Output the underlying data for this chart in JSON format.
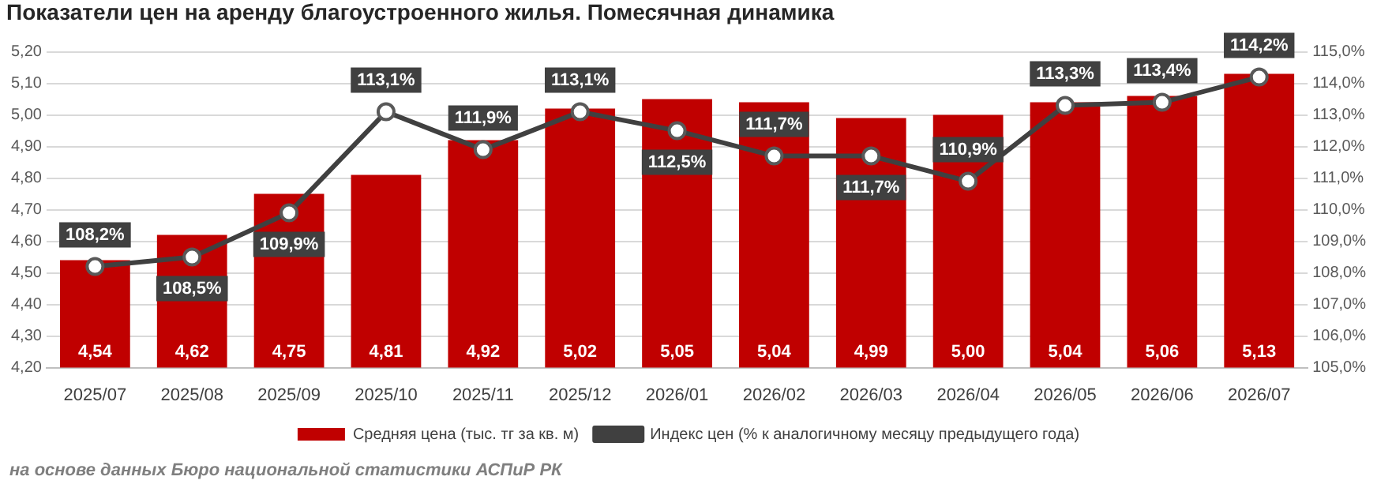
{
  "chart_data": {
    "type": "bar",
    "title": "Показатели цен на аренду благоустроенного жилья. Помесячная динамика",
    "categories": [
      "2025/07",
      "2025/08",
      "2025/09",
      "2025/10",
      "2025/11",
      "2025/12",
      "2026/01",
      "2026/02",
      "2026/03",
      "2026/04",
      "2026/05",
      "2026/06",
      "2026/07"
    ],
    "series": [
      {
        "name": "Средняя цена (тыс. тг за кв. м)",
        "color": "#c00000",
        "values": [
          4.54,
          4.62,
          4.75,
          4.81,
          4.92,
          5.02,
          5.05,
          5.04,
          4.99,
          5.0,
          5.04,
          5.06,
          5.13
        ],
        "value_labels": [
          "4,54",
          "4,62",
          "4,75",
          "4,81",
          "4,92",
          "5,02",
          "5,05",
          "5,04",
          "4,99",
          "5,00",
          "5,04",
          "5,06",
          "5,13"
        ]
      },
      {
        "name": "Индекс цен (% к аналогичному месяцу предыдущего года)",
        "type": "line",
        "axis": "y2",
        "color": "#404040",
        "values": [
          108.2,
          108.5,
          109.9,
          113.1,
          111.9,
          113.1,
          112.5,
          111.7,
          111.7,
          110.9,
          113.3,
          113.4,
          114.2
        ],
        "value_labels": [
          "108,2%",
          "108,5%",
          "109,9%",
          "113,1%",
          "111,9%",
          "113,1%",
          "112,5%",
          "111,7%",
          "111,7%",
          "110,9%",
          "113,3%",
          "113,4%",
          "114,2%"
        ]
      }
    ],
    "ylim": [
      4.2,
      5.2
    ],
    "yticks": [
      {
        "value": 4.2,
        "label": "4,20"
      },
      {
        "value": 4.3,
        "label": "4,30"
      },
      {
        "value": 4.4,
        "label": "4,40"
      },
      {
        "value": 4.5,
        "label": "4,50"
      },
      {
        "value": 4.6,
        "label": "4,60"
      },
      {
        "value": 4.7,
        "label": "4,70"
      },
      {
        "value": 4.8,
        "label": "4,80"
      },
      {
        "value": 4.9,
        "label": "4,90"
      },
      {
        "value": 5.0,
        "label": "5,00"
      },
      {
        "value": 5.1,
        "label": "5,10"
      },
      {
        "value": 5.2,
        "label": "5,20"
      }
    ],
    "y2lim": [
      105,
      115
    ],
    "y2ticks": [
      {
        "value": 105,
        "label": "105,0%"
      },
      {
        "value": 106,
        "label": "106,0%"
      },
      {
        "value": 107,
        "label": "107,0%"
      },
      {
        "value": 108,
        "label": "108,0%"
      },
      {
        "value": 109,
        "label": "109,0%"
      },
      {
        "value": 110,
        "label": "110,0%"
      },
      {
        "value": 111,
        "label": "111,0%"
      },
      {
        "value": 112,
        "label": "112,0%"
      },
      {
        "value": 113,
        "label": "113,0%"
      },
      {
        "value": 114,
        "label": "114,0%"
      },
      {
        "value": 115,
        "label": "115,0%"
      }
    ],
    "grid": "y",
    "legend": "bottom",
    "marker": "circle",
    "line_style": "solid",
    "annotations": [
      "на основе данных Бюро национальной статистики АСПиР РК"
    ]
  }
}
